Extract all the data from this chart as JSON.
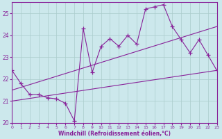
{
  "xlabel": "Windchill (Refroidissement éolien,°C)",
  "bg_color": "#cce8ec",
  "line_color": "#882299",
  "grid_color": "#aacccc",
  "x_min": 0,
  "x_max": 23,
  "y_min": 20,
  "y_max": 25.5,
  "yticks": [
    20,
    21,
    22,
    23,
    24,
    25
  ],
  "xticks": [
    0,
    1,
    2,
    3,
    4,
    5,
    6,
    7,
    8,
    9,
    10,
    11,
    12,
    13,
    14,
    15,
    16,
    17,
    18,
    19,
    20,
    21,
    22,
    23
  ],
  "series": [
    {
      "x": [
        0,
        1,
        2,
        3,
        4,
        5,
        6,
        7,
        8,
        9,
        10,
        11,
        12,
        13,
        14,
        15,
        16,
        17,
        18,
        19,
        20,
        21,
        22,
        23
      ],
      "y": [
        22.4,
        21.8,
        21.3,
        21.3,
        21.15,
        21.1,
        20.9,
        20.1,
        24.3,
        22.3,
        23.5,
        23.85,
        23.5,
        24.0,
        23.6,
        25.2,
        25.3,
        25.4,
        24.4,
        23.8,
        23.2,
        23.8,
        23.1,
        22.4
      ]
    },
    {
      "x": [
        0,
        23
      ],
      "y": [
        21.0,
        22.4
      ]
    },
    {
      "x": [
        0,
        23
      ],
      "y": [
        21.5,
        24.4
      ]
    }
  ]
}
